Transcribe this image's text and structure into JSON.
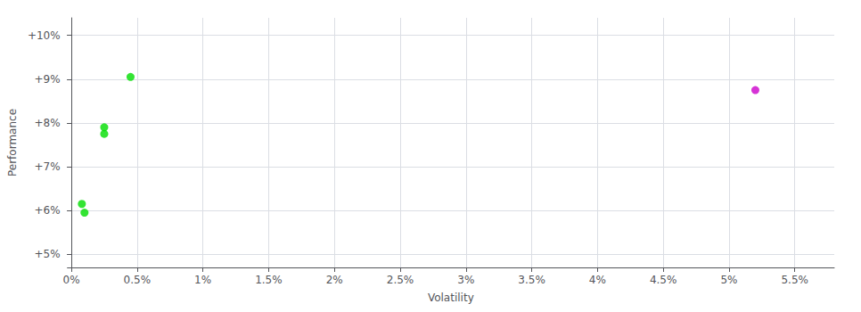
{
  "chart_data": {
    "type": "scatter",
    "xlabel": "Volatility",
    "ylabel": "Performance",
    "series": [
      {
        "color": "#00dd00",
        "x": [
          0.0008,
          0.001,
          0.0025,
          0.0025,
          0.0045
        ],
        "values": [
          0.0615,
          0.0595,
          0.0775,
          0.079,
          0.0905
        ]
      },
      {
        "color": "#cc00cc",
        "x": [
          0.052
        ],
        "values": [
          0.0875
        ]
      }
    ],
    "xlim": [
      -0.0003,
      0.058
    ],
    "ylim": [
      0.047,
      0.104
    ],
    "xticks": [
      {
        "value": 0.0,
        "label": "0%"
      },
      {
        "value": 0.005,
        "label": "0.5%"
      },
      {
        "value": 0.01,
        "label": "1%"
      },
      {
        "value": 0.015,
        "label": "1.5%"
      },
      {
        "value": 0.02,
        "label": "2%"
      },
      {
        "value": 0.025,
        "label": "2.5%"
      },
      {
        "value": 0.03,
        "label": "3%"
      },
      {
        "value": 0.035,
        "label": "3.5%"
      },
      {
        "value": 0.04,
        "label": "4%"
      },
      {
        "value": 0.045,
        "label": "4.5%"
      },
      {
        "value": 0.05,
        "label": "5%"
      },
      {
        "value": 0.055,
        "label": "5.5%"
      }
    ],
    "yticks": [
      {
        "value": 0.05,
        "label": "+5%"
      },
      {
        "value": 0.06,
        "label": "+6%"
      },
      {
        "value": 0.07,
        "label": "+7%"
      },
      {
        "value": 0.08,
        "label": "+8%"
      },
      {
        "value": 0.09,
        "label": "+9%"
      },
      {
        "value": 0.1,
        "label": "+10%"
      }
    ],
    "grid": true
  }
}
